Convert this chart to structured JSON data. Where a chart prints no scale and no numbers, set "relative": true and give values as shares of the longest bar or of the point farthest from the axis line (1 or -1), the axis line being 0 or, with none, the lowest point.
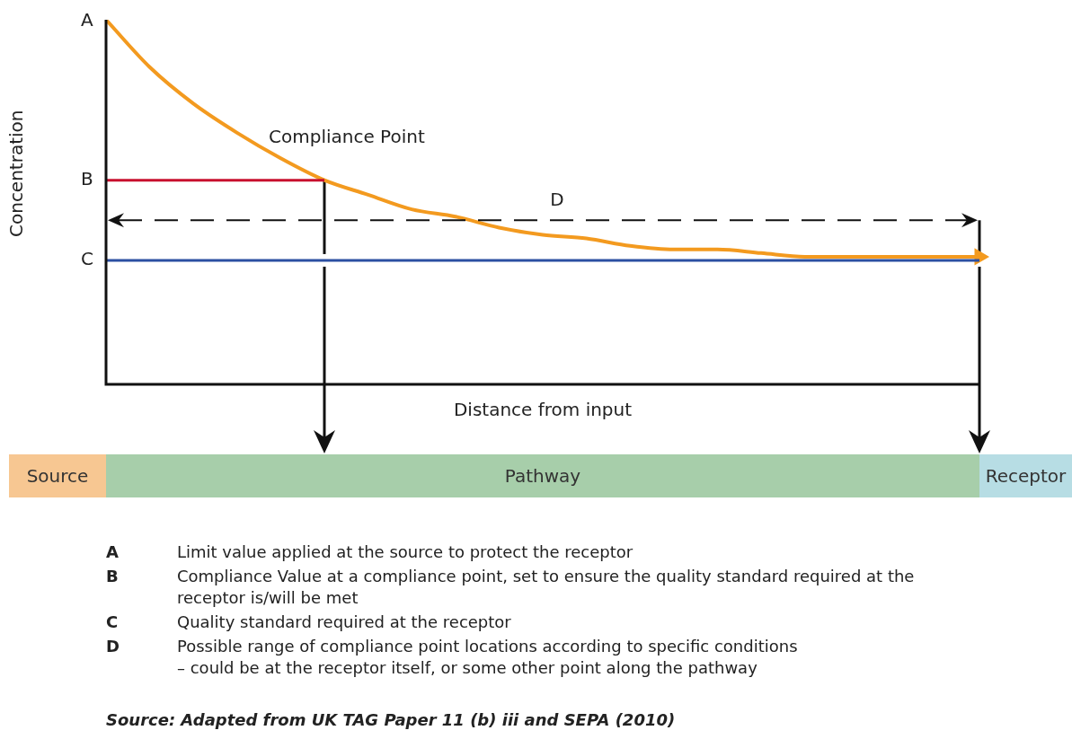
{
  "chart_data": {
    "type": "line",
    "relative": true,
    "xlabel": "Distance from input",
    "ylabel": "Concentration",
    "categories": [
      null,
      null,
      null,
      null,
      null,
      null,
      null,
      null,
      null,
      null,
      null,
      null,
      null,
      null,
      null,
      null,
      null,
      null,
      null,
      null,
      null
    ],
    "series": [
      {
        "color": "#f39a1f",
        "values": [
          1,
          0.87,
          0.77,
          0.69,
          0.62,
          0.56,
          0.52,
          0.48,
          0.46,
          0.43,
          0.41,
          0.4,
          0.38,
          0.37,
          0.37,
          0.36,
          0.35,
          0.35,
          0.35,
          0.35,
          0.35
        ]
      },
      {
        "color": "#c8102e",
        "values": [
          0.56,
          0.56,
          0.56,
          0.56,
          0.56,
          0.56,
          null,
          null,
          null,
          null,
          null,
          null,
          null,
          null,
          null,
          null,
          null,
          null,
          null,
          null,
          null
        ]
      },
      {
        "color": "#2b4fa2",
        "values": [
          0.34,
          0.34,
          0.34,
          0.34,
          0.34,
          0.34,
          0.34,
          0.34,
          0.34,
          0.34,
          0.34,
          0.34,
          0.34,
          0.34,
          0.34,
          0.34,
          0.34,
          0.34,
          0.34,
          0.34,
          0.34
        ]
      }
    ],
    "ref_lines": [
      {
        "axis": "y",
        "value": 0.45,
        "label": "D",
        "line_style": "dashed",
        "color": "#111111"
      }
    ],
    "annotations": [
      "A",
      "B",
      "C",
      "Compliance Point",
      "Source",
      "Pathway",
      "Receptor",
      "A",
      "Limit value applied at the source to protect the receptor",
      "B",
      "Compliance Value at a compliance point, set to ensure the quality standard required at the receptor is/will be met",
      "C",
      "Quality standard required at the receptor",
      "D",
      "Possible range of compliance point locations according to specific conditions\n– could be at the receptor itself, or some other point along the pathway",
      "Source: Adapted from UK TAG Paper 11 (b) iii and SEPA (2010)"
    ]
  }
}
